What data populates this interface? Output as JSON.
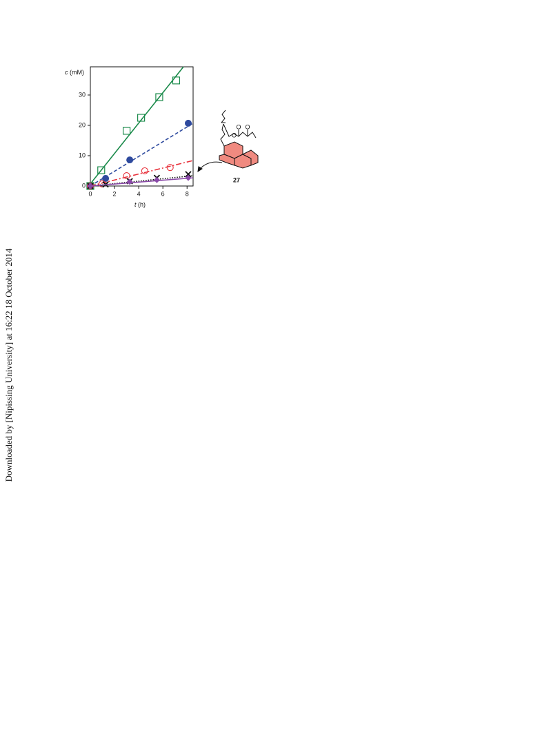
{
  "side_note": "Downloaded by [Nipissing University] at 16:22 18 October 2014",
  "compound_label": "27",
  "chart_data": {
    "type": "scatter",
    "ylabel": {
      "symbol": "c",
      "unit": "(mM)"
    },
    "xlabel": {
      "symbol": "t",
      "unit": "(h)"
    },
    "xlim": [
      0,
      8.5
    ],
    "xticks": [
      0,
      2,
      4,
      6,
      8
    ],
    "ylim": [
      0,
      39.3
    ],
    "yticks": [
      0,
      10,
      20,
      30
    ],
    "series": [
      {
        "color": "#1a8a4a",
        "marker": "open-square",
        "x": [
          0,
          0.9,
          3.0,
          4.2,
          5.7,
          7.1
        ],
        "values": [
          0,
          5.2,
          18.2,
          22.5,
          29.3,
          34.8
        ],
        "fit": {
          "dash": "solid",
          "x": [
            0,
            7.7
          ],
          "values": [
            0.7,
            39.3
          ]
        }
      },
      {
        "color": "#2e4a9e",
        "marker": "filled-circle",
        "x": [
          0,
          1.26,
          3.26,
          8.1
        ],
        "values": [
          0,
          2.5,
          8.6,
          20.7
        ],
        "fit": {
          "dash": "dashed",
          "x": [
            0,
            8.5
          ],
          "values": [
            0,
            20.7
          ]
        }
      },
      {
        "color": "#e8323c",
        "marker": "open-circle",
        "x": [
          0,
          0.97,
          3.0,
          4.5,
          6.6
        ],
        "values": [
          0,
          0.7,
          3.4,
          5.0,
          6.1
        ],
        "fit": {
          "dash": "dash-dot",
          "x": [
            0,
            8.5
          ],
          "values": [
            0,
            8.4
          ]
        }
      },
      {
        "color": "#111111",
        "marker": "cross",
        "x": [
          0,
          1.26,
          3.26,
          5.5,
          8.1
        ],
        "values": [
          0,
          0.5,
          1.6,
          2.7,
          3.9
        ],
        "fit": {
          "dash": "dotted",
          "x": [
            0,
            8.5
          ],
          "values": [
            0,
            3.4
          ]
        }
      },
      {
        "color": "#8a4aa8",
        "marker": "filled-diamond",
        "x": [
          0,
          3.26,
          5.5,
          8.1
        ],
        "values": [
          0,
          1.4,
          2.0,
          2.7
        ],
        "fit": {
          "dash": "solid",
          "x": [
            0,
            8.5
          ],
          "values": [
            0,
            2.7
          ]
        }
      }
    ]
  }
}
